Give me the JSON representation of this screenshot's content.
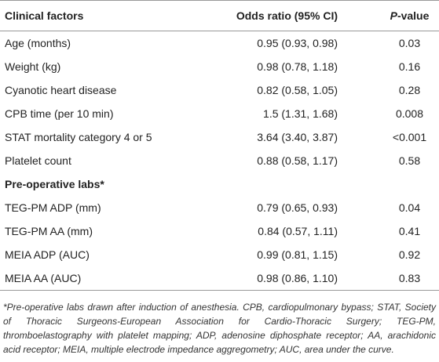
{
  "table": {
    "header": [
      "Clinical factors",
      "Odds ratio (95% CI)",
      "P-value"
    ],
    "rows": [
      [
        "Age (months)",
        "0.95 (0.93, 0.98)",
        "0.03"
      ],
      [
        "Weight (kg)",
        "0.98 (0.78, 1.18)",
        "0.16"
      ],
      [
        "Cyanotic heart disease",
        "0.82 (0.58, 1.05)",
        "0.28"
      ],
      [
        "CPB time (per 10 min)",
        "1.5 (1.31, 1.68)",
        "0.008"
      ],
      [
        "STAT mortality category 4 or 5",
        "3.64 (3.40, 3.87)",
        "<0.001"
      ],
      [
        "Platelet count",
        "0.88 (0.58, 1.17)",
        "0.58"
      ],
      [
        "Pre-operative labs*"
      ],
      [
        "TEG-PM ADP (mm)",
        "0.79 (0.65, 0.93)",
        "0.04"
      ],
      [
        "TEG-PM AA (mm)",
        "0.84 (0.57, 1.11)",
        "0.41"
      ],
      [
        "MEIA ADP (AUC)",
        "0.99 (0.81, 1.15)",
        "0.92"
      ],
      [
        "MEIA AA (AUC)",
        "0.98 (0.86, 1.10)",
        "0.83"
      ]
    ],
    "footnote": "*Pre-operative labs drawn after induction of anesthesia. CPB, cardiopulmonary bypass; STAT, Society of Thoracic Surgeons-European Association for Cardio-Thoracic Surgery; TEG-PM, thromboelastography with platelet mapping; ADP, adenosine diphosphate receptor; AA, arachidonic acid receptor; MEIA, multiple electrode impedance aggregometry; AUC, area under the curve."
  }
}
